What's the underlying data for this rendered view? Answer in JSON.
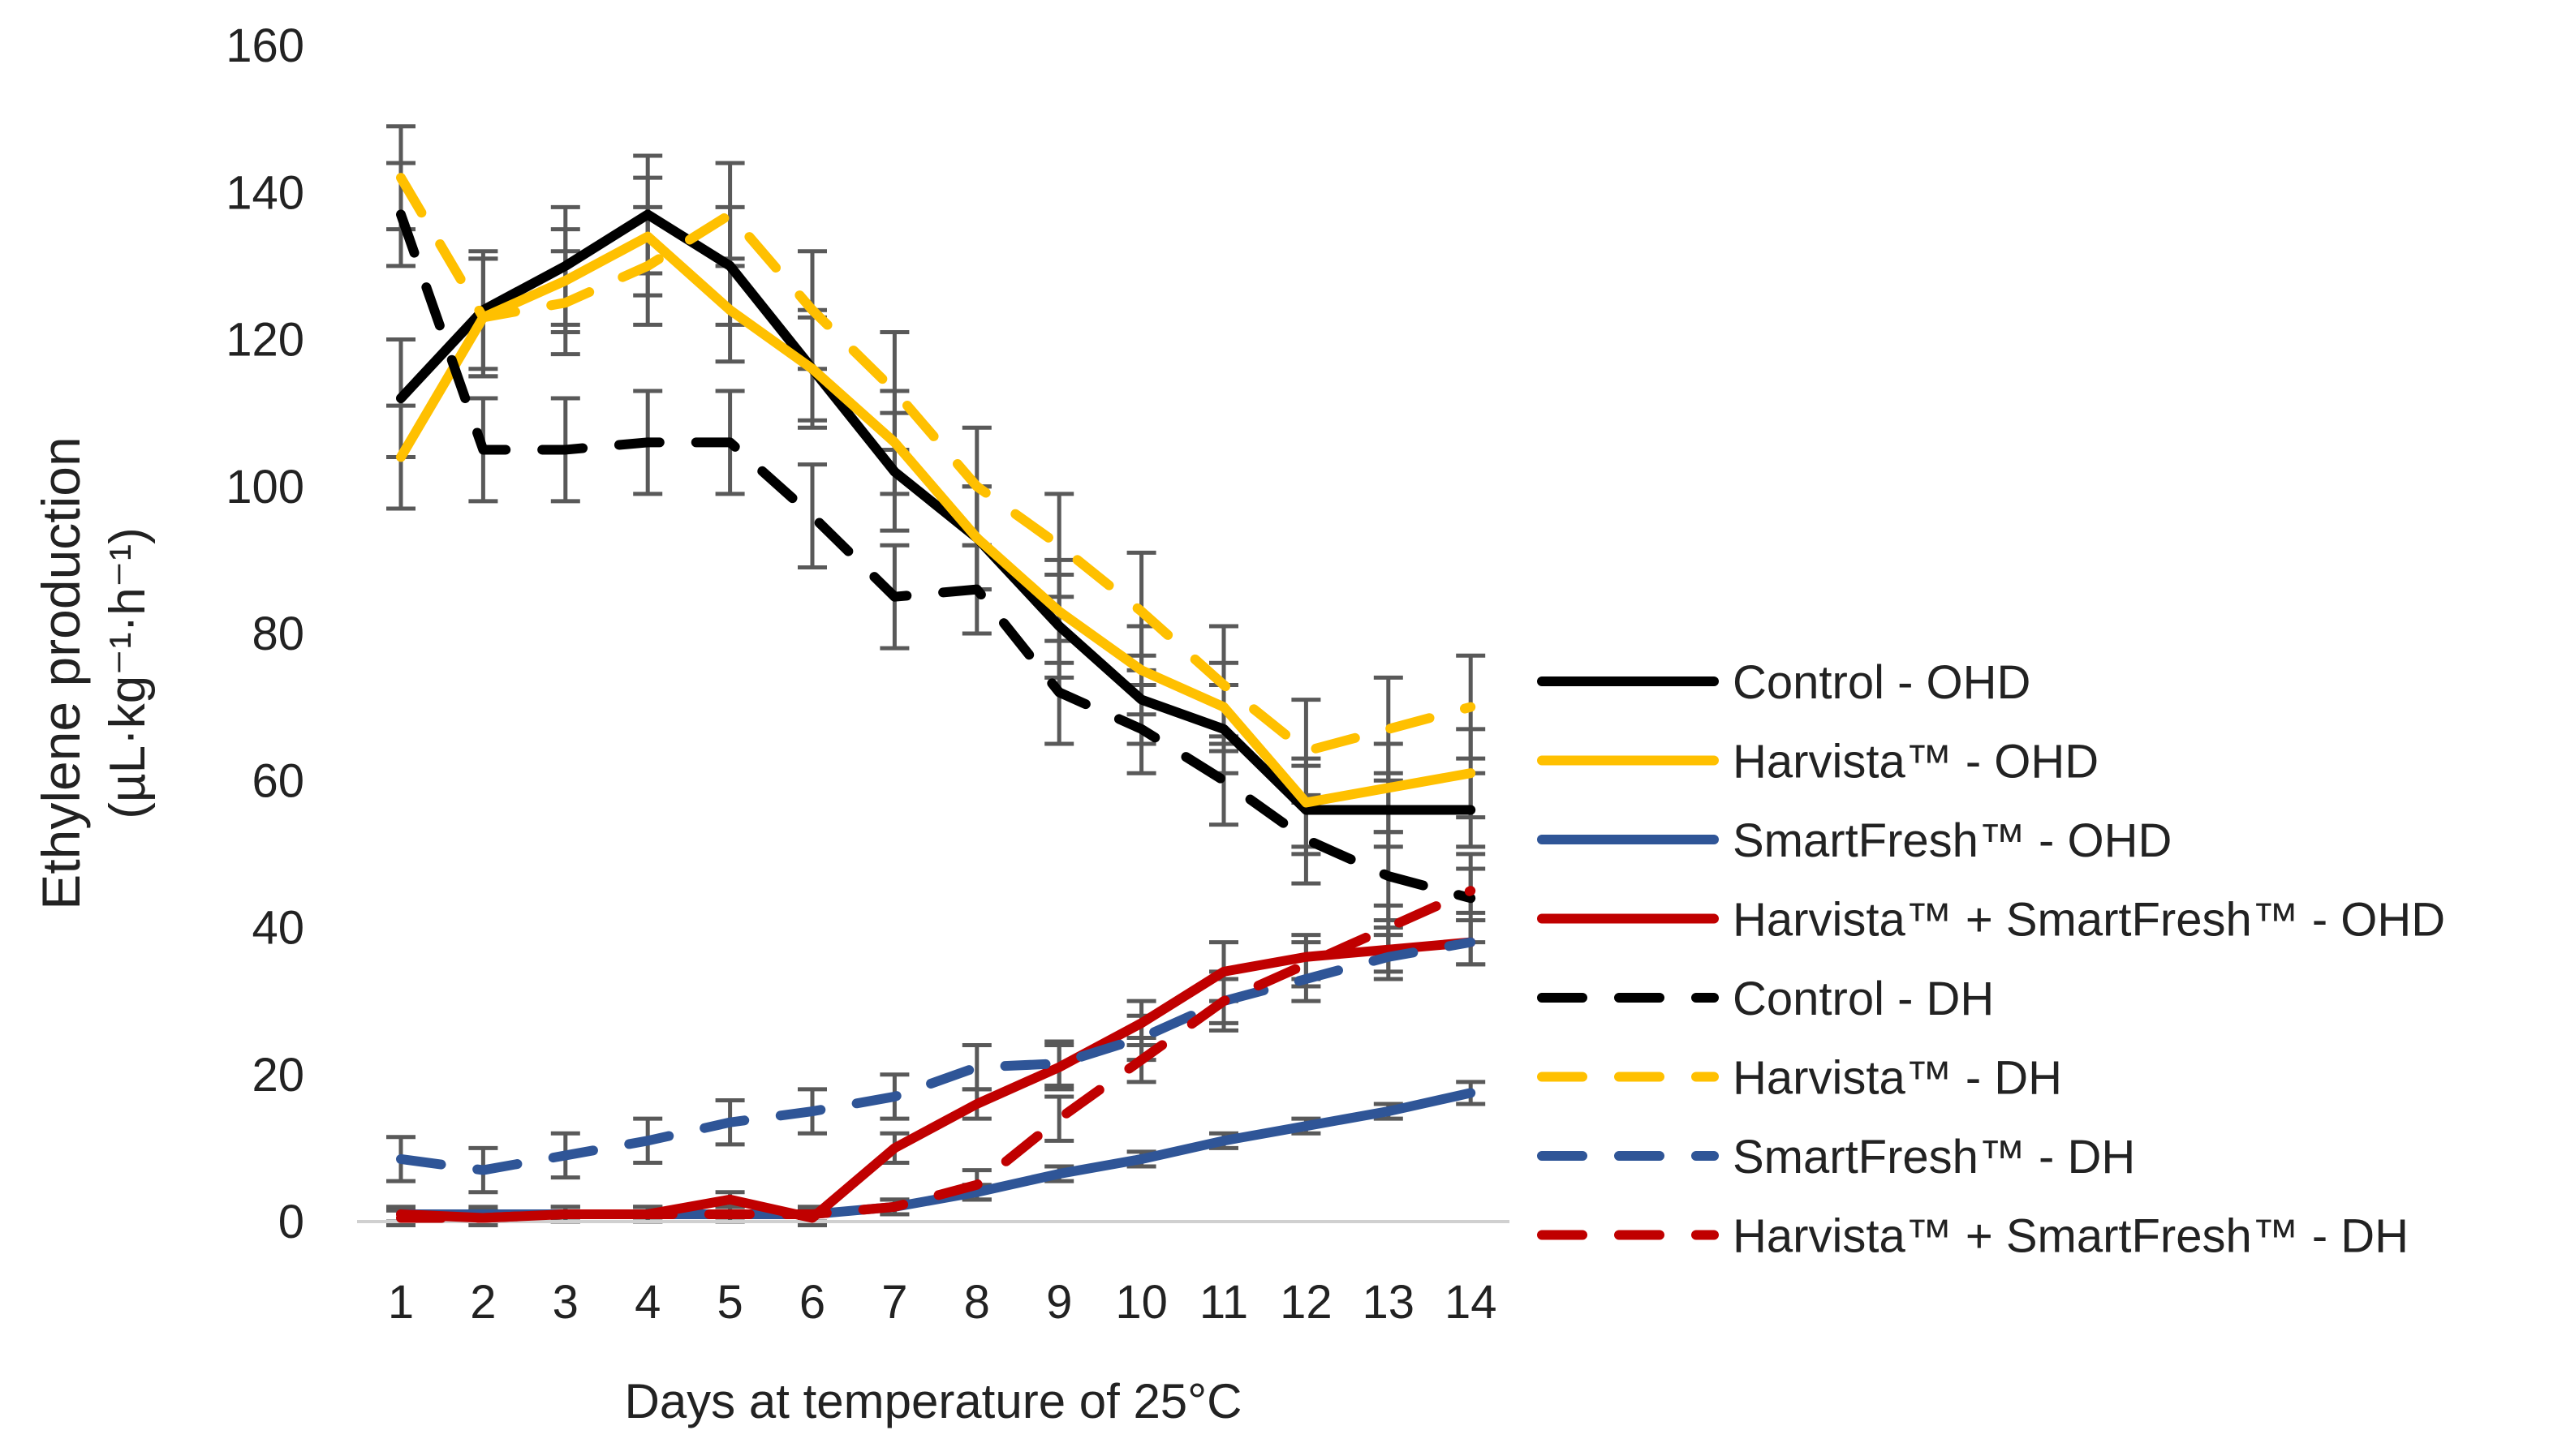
{
  "chart_data": {
    "type": "line",
    "title": "",
    "xlabel": "Days at temperature of 25°C",
    "ylabel_line1": "Ethylene production",
    "ylabel_line2": "(µL·kg⁻¹·h⁻¹)",
    "x": [
      1,
      2,
      3,
      4,
      5,
      6,
      7,
      8,
      9,
      10,
      11,
      12,
      13,
      14
    ],
    "xticks": [
      "1",
      "2",
      "3",
      "4",
      "5",
      "6",
      "7",
      "8",
      "9",
      "10",
      "11",
      "12",
      "13",
      "14"
    ],
    "ylim": [
      0,
      160
    ],
    "yticks": [
      "0",
      "20",
      "40",
      "60",
      "80",
      "100",
      "120",
      "140",
      "160"
    ],
    "grid": false,
    "legend_position": "right",
    "series": [
      {
        "name": "Control - OHD",
        "color": "#000000",
        "dash": false,
        "values": [
          112,
          124,
          130,
          137,
          130,
          116,
          102,
          93,
          81,
          71,
          67,
          56,
          56,
          56
        ],
        "errors": [
          8,
          8,
          8,
          8,
          8,
          8,
          8,
          7,
          7,
          6,
          6,
          6,
          5,
          5
        ]
      },
      {
        "name": "Harvista™ - OHD",
        "color": "#FFC000",
        "dash": false,
        "values": [
          104,
          123,
          128,
          134,
          124,
          116,
          106,
          93,
          83,
          75,
          70,
          57,
          59,
          61
        ],
        "errors": [
          7,
          8,
          7,
          8,
          7,
          7,
          7,
          7,
          7,
          6,
          6,
          6,
          6,
          6
        ]
      },
      {
        "name": "SmartFresh™ - OHD",
        "color": "#2F5597",
        "dash": false,
        "values": [
          1,
          1,
          1,
          1,
          1,
          1,
          2,
          4,
          6.5,
          8.5,
          11,
          13,
          15,
          17.5
        ],
        "errors": [
          1,
          1,
          1,
          1,
          1,
          1,
          1,
          1,
          1,
          1,
          1,
          1,
          1,
          1.5
        ]
      },
      {
        "name": "Harvista™ + SmartFresh™ - OHD",
        "color": "#C00000",
        "dash": false,
        "values": [
          1,
          0.5,
          1,
          1,
          3,
          0.5,
          10,
          16,
          21,
          27,
          34,
          36,
          37,
          38
        ],
        "errors": [
          1,
          1,
          1,
          1,
          1,
          1,
          2,
          2,
          3,
          3,
          4,
          3,
          3,
          3
        ]
      },
      {
        "name": "Control - DH",
        "color": "#000000",
        "dash": true,
        "values": [
          137,
          105,
          105,
          106,
          106,
          96,
          85,
          86,
          72,
          67,
          60,
          52,
          47,
          44
        ],
        "errors": [
          7,
          7,
          7,
          7,
          7,
          7,
          7,
          6,
          7,
          6,
          6,
          6,
          6,
          6
        ]
      },
      {
        "name": "Harvista™ - DH",
        "color": "#FFC000",
        "dash": true,
        "values": [
          142,
          123,
          125,
          130,
          137,
          124,
          113,
          100,
          92,
          83,
          73,
          64,
          67,
          70
        ],
        "errors": [
          7,
          8,
          7,
          8,
          7,
          8,
          8,
          8,
          7,
          8,
          8,
          7,
          7,
          7
        ]
      },
      {
        "name": "SmartFresh™ - DH",
        "color": "#2F5597",
        "dash": true,
        "values": [
          8.5,
          7,
          9,
          11,
          13.5,
          15,
          17,
          21,
          21.5,
          25,
          30,
          33,
          36,
          38
        ],
        "errors": [
          3,
          3,
          3,
          3,
          3,
          3,
          3,
          3,
          3,
          3,
          3,
          3,
          3,
          3
        ]
      },
      {
        "name": "Harvista™ + SmartFresh™ - DH",
        "color": "#C00000",
        "dash": true,
        "values": [
          0.5,
          0.5,
          1,
          1,
          1,
          1,
          2,
          5,
          14,
          22,
          30,
          35,
          40,
          45
        ],
        "errors": [
          1,
          1,
          1,
          1,
          1,
          1,
          1,
          2,
          3,
          3,
          4,
          3,
          3,
          3
        ]
      }
    ]
  }
}
